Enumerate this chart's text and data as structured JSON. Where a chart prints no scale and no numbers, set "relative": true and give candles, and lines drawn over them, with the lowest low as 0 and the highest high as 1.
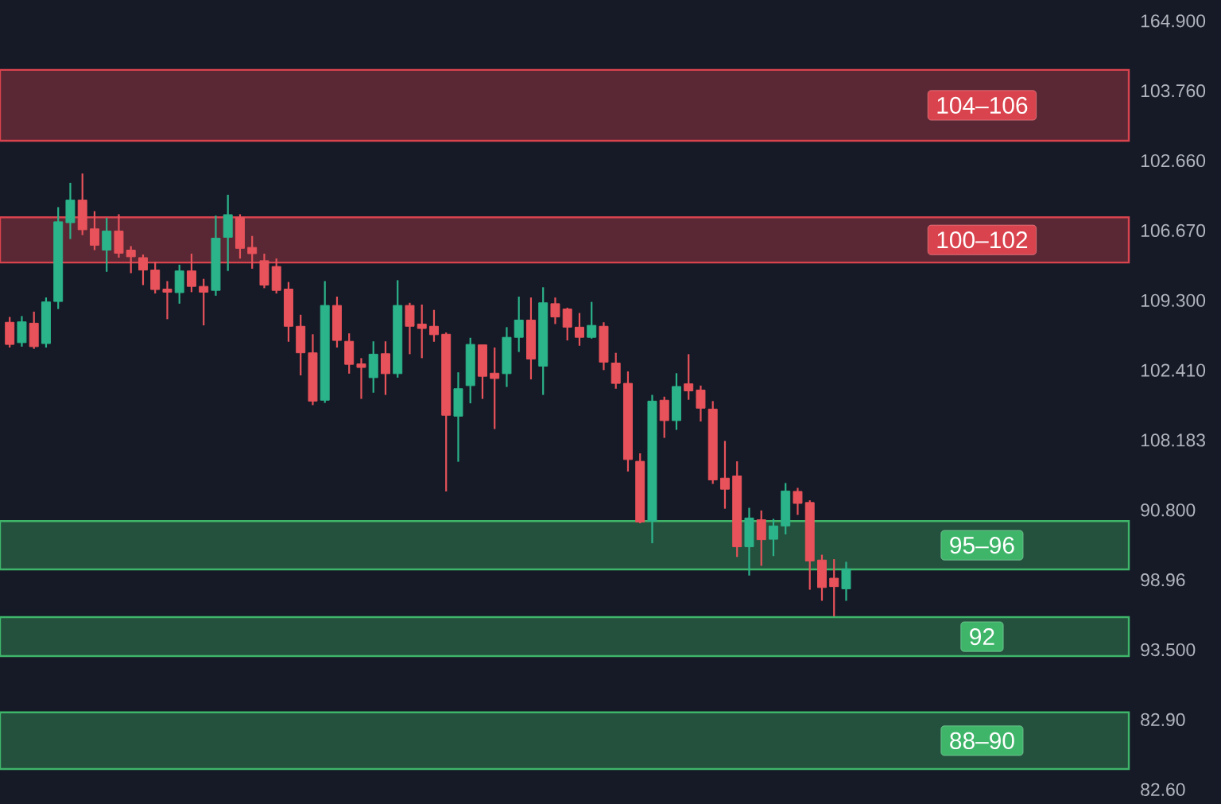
{
  "chart_data": {
    "type": "candlestick",
    "relative": true,
    "categories": [
      null,
      null,
      null,
      null,
      null,
      null,
      null,
      null,
      null,
      null,
      null,
      null,
      null,
      null,
      null,
      null,
      null,
      null,
      null,
      null,
      null,
      null,
      null,
      null,
      null,
      null,
      null,
      null,
      null,
      null,
      null,
      null,
      null,
      null,
      null,
      null,
      null,
      null,
      null,
      null,
      null,
      null,
      null,
      null,
      null,
      null,
      null,
      null,
      null,
      null,
      null,
      null,
      null,
      null,
      null,
      null,
      null,
      null,
      null,
      null,
      null,
      null,
      null,
      null,
      null,
      null,
      null,
      null,
      null,
      null
    ],
    "ohlc": [
      [
        0.664,
        0.676,
        0.607,
        0.614
      ],
      [
        0.618,
        0.678,
        0.609,
        0.665
      ],
      [
        0.662,
        0.688,
        0.604,
        0.609
      ],
      [
        0.616,
        0.72,
        0.607,
        0.71
      ],
      [
        0.711,
        0.924,
        0.694,
        0.891
      ],
      [
        0.889,
        0.979,
        0.852,
        0.94
      ],
      [
        0.94,
        1,
        0.861,
        0.873
      ],
      [
        0.875,
        0.915,
        0.827,
        0.838
      ],
      [
        0.827,
        0.9,
        0.778,
        0.87
      ],
      [
        0.87,
        0.908,
        0.81,
        0.82
      ],
      [
        0.827,
        0.836,
        0.775,
        0.812
      ],
      [
        0.81,
        0.817,
        0.748,
        0.782
      ],
      [
        0.782,
        0.801,
        0.729,
        0.738
      ],
      [
        0.739,
        0.757,
        0.671,
        0.732
      ],
      [
        0.731,
        0.794,
        0.706,
        0.78
      ],
      [
        0.78,
        0.819,
        0.732,
        0.745
      ],
      [
        0.745,
        0.762,
        0.657,
        0.732
      ],
      [
        0.736,
        0.905,
        0.724,
        0.854
      ],
      [
        0.856,
        0.952,
        0.78,
        0.907
      ],
      [
        0.901,
        0.908,
        0.808,
        0.831
      ],
      [
        0.833,
        0.859,
        0.785,
        0.819
      ],
      [
        0.803,
        0.819,
        0.741,
        0.748
      ],
      [
        0.79,
        0.808,
        0.729,
        0.736
      ],
      [
        0.739,
        0.755,
        0.62,
        0.655
      ],
      [
        0.655,
        0.681,
        0.544,
        0.595
      ],
      [
        0.595,
        0.637,
        0.477,
        0.486
      ],
      [
        0.488,
        0.757,
        0.482,
        0.702
      ],
      [
        0.702,
        0.722,
        0.607,
        0.623
      ],
      [
        0.621,
        0.639,
        0.548,
        0.569
      ],
      [
        0.57,
        0.583,
        0.491,
        0.562
      ],
      [
        0.539,
        0.621,
        0.505,
        0.592
      ],
      [
        0.593,
        0.621,
        0.5,
        0.548
      ],
      [
        0.548,
        0.759,
        0.539,
        0.702
      ],
      [
        0.702,
        0.708,
        0.592,
        0.655
      ],
      [
        0.66,
        0.704,
        0.583,
        0.65
      ],
      [
        0.655,
        0.692,
        0.62,
        0.636
      ],
      [
        0.637,
        0.641,
        0.282,
        0.454
      ],
      [
        0.452,
        0.551,
        0.349,
        0.514
      ],
      [
        0.521,
        0.629,
        0.481,
        0.614
      ],
      [
        0.613,
        0.613,
        0.491,
        0.542
      ],
      [
        0.549,
        0.607,
        0.423,
        0.537
      ],
      [
        0.548,
        0.653,
        0.518,
        0.63
      ],
      [
        0.63,
        0.722,
        0.597,
        0.669
      ],
      [
        0.669,
        0.72,
        0.535,
        0.581
      ],
      [
        0.565,
        0.743,
        0.5,
        0.708
      ],
      [
        0.706,
        0.72,
        0.66,
        0.676
      ],
      [
        0.694,
        0.697,
        0.623,
        0.653
      ],
      [
        0.653,
        0.685,
        0.611,
        0.63
      ],
      [
        0.63,
        0.71,
        0.627,
        0.657
      ],
      [
        0.655,
        0.664,
        0.556,
        0.574
      ],
      [
        0.572,
        0.595,
        0.514,
        0.526
      ],
      [
        0.526,
        0.553,
        0.327,
        0.354
      ],
      [
        0.35,
        0.368,
        0.21,
        0.213
      ],
      [
        0.215,
        0.5,
        0.165,
        0.486
      ],
      [
        0.488,
        0.496,
        0.403,
        0.442
      ],
      [
        0.442,
        0.549,
        0.421,
        0.519
      ],
      [
        0.525,
        0.592,
        0.489,
        0.509
      ],
      [
        0.511,
        0.521,
        0.44,
        0.47
      ],
      [
        0.468,
        0.486,
        0.299,
        0.308
      ],
      [
        0.312,
        0.396,
        0.243,
        0.287
      ],
      [
        0.317,
        0.35,
        0.134,
        0.157
      ],
      [
        0.157,
        0.245,
        0.092,
        0.222
      ],
      [
        0.218,
        0.239,
        0.114,
        0.173
      ],
      [
        0.174,
        0.22,
        0.136,
        0.204
      ],
      [
        0.204,
        0.301,
        0.185,
        0.283
      ],
      [
        0.282,
        0.29,
        0.229,
        0.255
      ],
      [
        0.257,
        0.262,
        0.06,
        0.125
      ],
      [
        0.127,
        0.139,
        0.035,
        0.065
      ],
      [
        0.086,
        0.129,
        0,
        0.067
      ],
      [
        0.062,
        0.123,
        0.035,
        0.107
      ]
    ],
    "annotations": [
      "164.900",
      "103.760",
      "102.660",
      "106.670",
      "109.300",
      "102.410",
      "108.183",
      "90.800",
      "98.96",
      "93.500",
      "82.90",
      "82.60"
    ],
    "bands": [
      {
        "axis": "y",
        "from": 1.074,
        "to": 1.234,
        "label": "104–106",
        "color": "#d9434e"
      },
      {
        "axis": "y",
        "from": 0.799,
        "to": 0.901,
        "label": "100–102",
        "color": "#d9434e"
      },
      {
        "axis": "y",
        "from": 0.106,
        "to": 0.215,
        "label": "95–96",
        "color": "#3fb56a"
      },
      {
        "axis": "y",
        "from": -0.09,
        "to": -0.002,
        "label": "92",
        "color": "#3fb56a"
      },
      {
        "axis": "y",
        "from": -0.345,
        "to": -0.217,
        "label": "88–90",
        "color": "#3fb56a"
      }
    ]
  }
}
